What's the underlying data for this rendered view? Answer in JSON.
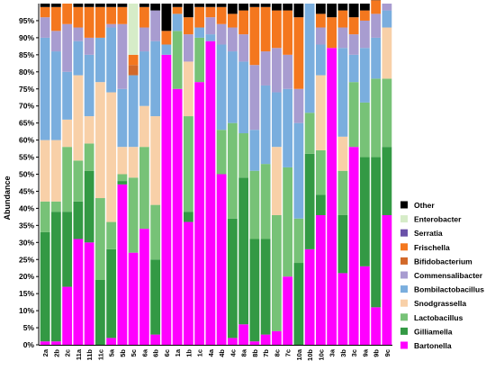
{
  "chart_data": {
    "type": "bar",
    "stacked": true,
    "ylabel": "Abundance",
    "ylim": [
      0,
      100
    ],
    "yticks": [
      "0%",
      "5%",
      "10%",
      "15%",
      "20%",
      "25%",
      "30%",
      "35%",
      "40%",
      "45%",
      "50%",
      "55%",
      "60%",
      "65%",
      "70%",
      "75%",
      "80%",
      "85%",
      "90%",
      "95%"
    ],
    "legend_position": "right",
    "grid": false,
    "categories": [
      "2a",
      "2b",
      "2c",
      "11a",
      "11b",
      "11c",
      "5a",
      "5b",
      "5c",
      "6a",
      "6b",
      "6c",
      "1a",
      "1b",
      "1c",
      "4a",
      "4b",
      "4c",
      "8a",
      "8b",
      "7b",
      "8c",
      "7c",
      "10a",
      "10b",
      "10c",
      "3a",
      "3b",
      "3c",
      "9a",
      "9b",
      "9c"
    ],
    "series": [
      {
        "name": "Bartonella",
        "color": "#ff00ff",
        "values": [
          1,
          1,
          17,
          31,
          30,
          0,
          2,
          47,
          27,
          34,
          3,
          85,
          75,
          36,
          77,
          89,
          50,
          2,
          6,
          1,
          3,
          4,
          20,
          0,
          28,
          38,
          87,
          21,
          58,
          23,
          11,
          38
        ]
      },
      {
        "name": "Gilliamella",
        "color": "#339944",
        "values": [
          32,
          38,
          22,
          11,
          21,
          19,
          26,
          1,
          0,
          0,
          22,
          0,
          0,
          3,
          0,
          0,
          0,
          35,
          43,
          30,
          28,
          0,
          0,
          24,
          28,
          6,
          0,
          17,
          0,
          32,
          44,
          20
        ]
      },
      {
        "name": "Lactobacillus",
        "color": "#77c277",
        "values": [
          9,
          3,
          19,
          12,
          8,
          24,
          8,
          2,
          22,
          24,
          16,
          0,
          17,
          28,
          13,
          0,
          13,
          28,
          13,
          20,
          22,
          34,
          32,
          13,
          12,
          13,
          0,
          13,
          19,
          16,
          23,
          20
        ]
      },
      {
        "name": "Snodgrassella",
        "color": "#f8d0a8",
        "values": [
          18,
          18,
          8,
          25,
          8,
          34,
          38,
          8,
          9,
          12,
          26,
          0,
          0,
          16,
          0,
          0,
          0,
          0,
          0,
          0,
          0,
          20,
          0,
          0,
          0,
          22,
          0,
          10,
          0,
          0,
          0,
          15
        ]
      },
      {
        "name": "Bombilactobacillus",
        "color": "#7aaede",
        "values": [
          30,
          26,
          14,
          10,
          18,
          13,
          19,
          17,
          21,
          16,
          22,
          3,
          5,
          0,
          3,
          2,
          25,
          21,
          21,
          12,
          23,
          16,
          23,
          28,
          32,
          9,
          0,
          26,
          8,
          16,
          12,
          5
        ]
      },
      {
        "name": "Commensalibacter",
        "color": "#a89cd0",
        "values": [
          6,
          6,
          14,
          4,
          5,
          0,
          1,
          19,
          0,
          7,
          9,
          0,
          0,
          8,
          0,
          5,
          6,
          7,
          8,
          19,
          10,
          13,
          10,
          10,
          0,
          5,
          0,
          6,
          6,
          8,
          7,
          2
        ]
      },
      {
        "name": "Bifidobacterium",
        "color": "#d2692a",
        "values": [
          0,
          0,
          0,
          0,
          0,
          0,
          0,
          0,
          3,
          0,
          0,
          0,
          0,
          0,
          0,
          0,
          0,
          0,
          0,
          0,
          0,
          0,
          0,
          0,
          0,
          0,
          0,
          0,
          0,
          0,
          0,
          0
        ]
      },
      {
        "name": "Frischella",
        "color": "#f4771e",
        "values": [
          3,
          7,
          6,
          6,
          9,
          9,
          5,
          5,
          3,
          6,
          0,
          4,
          2,
          5,
          6,
          3,
          5,
          4,
          7,
          17,
          13,
          11,
          13,
          21,
          0,
          4,
          9,
          5,
          5,
          3,
          4,
          0
        ]
      },
      {
        "name": "Serratia",
        "color": "#6a52a8",
        "values": [
          0,
          0,
          0,
          0,
          0,
          0,
          0,
          0,
          0,
          0,
          0,
          0,
          0,
          0,
          0,
          0,
          0,
          0,
          0,
          0,
          0,
          0,
          0,
          0,
          0,
          0,
          0,
          0,
          0,
          0,
          0,
          0
        ]
      },
      {
        "name": "Enterobacter",
        "color": "#d6ecc8",
        "values": [
          0,
          0,
          0,
          0,
          0,
          0,
          0,
          0,
          15,
          0,
          0,
          0,
          0,
          0,
          0,
          0,
          0,
          0,
          0,
          0,
          0,
          0,
          0,
          0,
          0,
          0,
          0,
          0,
          0,
          0,
          0,
          0
        ]
      },
      {
        "name": "Other",
        "color": "#000000",
        "values": [
          1,
          1,
          0,
          1,
          1,
          1,
          1,
          1,
          0,
          1,
          2,
          8,
          1,
          4,
          1,
          1,
          1,
          3,
          2,
          1,
          1,
          2,
          2,
          4,
          0,
          3,
          4,
          2,
          4,
          2,
          1,
          0
        ]
      }
    ]
  }
}
